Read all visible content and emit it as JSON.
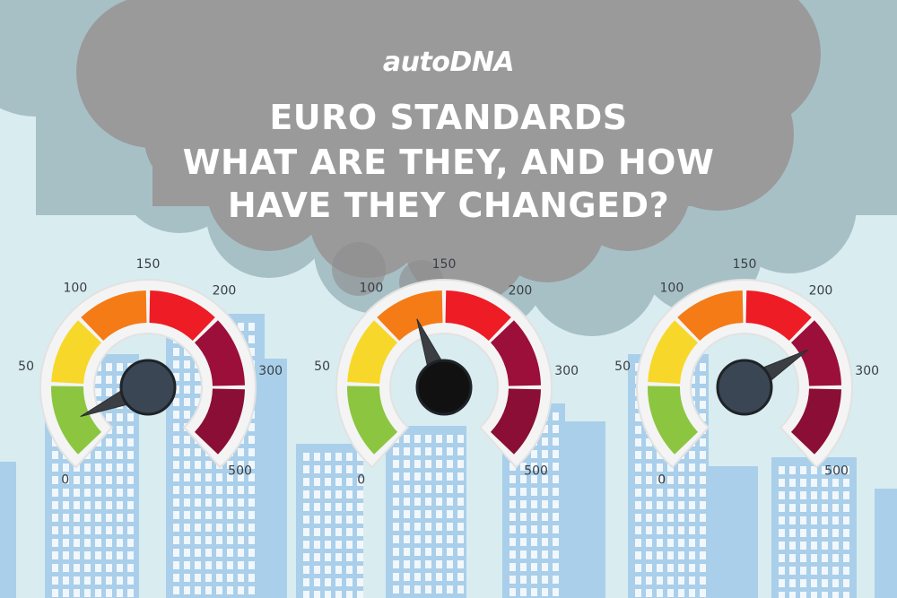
{
  "header": {
    "brand": "autoDNA",
    "title_lines": [
      "EURO STANDARDS",
      "WHAT ARE THEY, AND HOW",
      "HAVE THEY CHANGED?"
    ]
  },
  "gauge": {
    "tick_labels": [
      "0",
      "50",
      "100",
      "150",
      "200",
      "300",
      "500"
    ],
    "segment_colors": [
      "#8cc640",
      "#f7d82a",
      "#f47b16",
      "#ee1c25",
      "#9b0f3a",
      "#8a0e35"
    ],
    "knob_color": "#3b4654"
  },
  "gauges": [
    {
      "name": "gauge-left",
      "needle_value": 0.08,
      "knob_color": "#3b4654"
    },
    {
      "name": "gauge-middle",
      "needle_value": 0.42,
      "knob_color": "#111111"
    },
    {
      "name": "gauge-right",
      "needle_value": 0.72,
      "knob_color": "#3b4654"
    }
  ],
  "colors": {
    "sky": "#d9ecf0",
    "smog_back": "#a7c0c6",
    "smog_front": "#9a9a9b",
    "buildings": "#a9cfea",
    "windows": "#ffffff"
  }
}
